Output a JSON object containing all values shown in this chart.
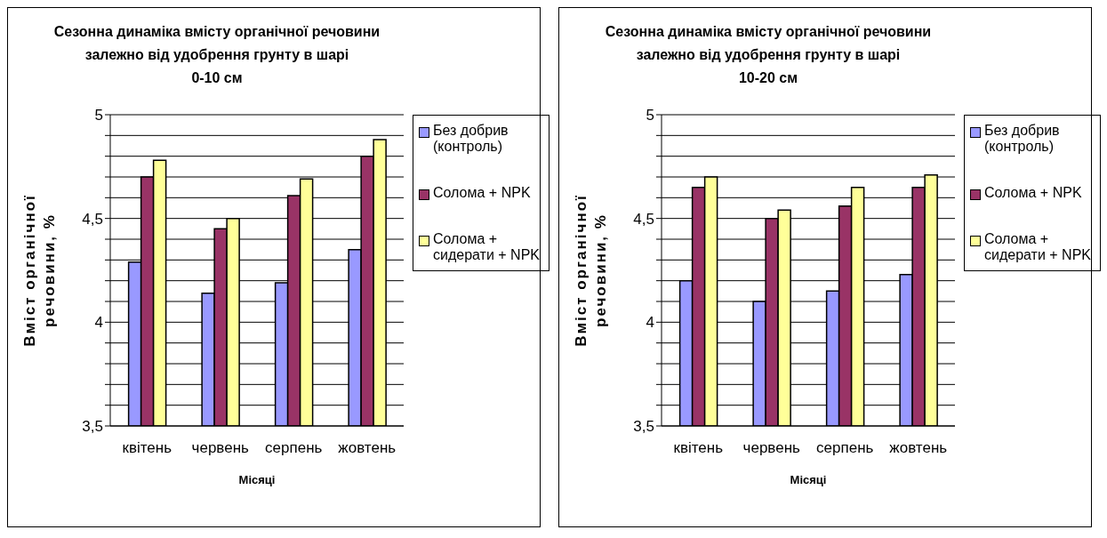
{
  "chart_data": [
    {
      "type": "bar",
      "title": "Сезонна динаміка вмісту органічної речовини\nзалежно від удобрення грунту в шарі\n0-10 см",
      "xlabel": "Місяці",
      "ylabel": "Вміст органічної\nречовини, %",
      "categories": [
        "квітень",
        "червень",
        "серпень",
        "жовтень"
      ],
      "series": [
        {
          "name": "Без добрив (контроль)",
          "color": "#9999ff",
          "values": [
            4.29,
            4.14,
            4.19,
            4.35
          ]
        },
        {
          "name": "Солома + NPK",
          "color": "#993366",
          "values": [
            4.7,
            4.45,
            4.61,
            4.8
          ]
        },
        {
          "name": "Солома + сидерати + NPK",
          "color": "#ffff99",
          "values": [
            4.78,
            4.5,
            4.69,
            4.88
          ]
        }
      ],
      "ylim": [
        3.5,
        5
      ],
      "yticks": [
        {
          "value": 3.5,
          "label": "3,5"
        },
        {
          "value": 3.6,
          "label": null
        },
        {
          "value": 3.7,
          "label": null
        },
        {
          "value": 3.8,
          "label": null
        },
        {
          "value": 3.9,
          "label": null
        },
        {
          "value": 4,
          "label": "4"
        },
        {
          "value": 4.1,
          "label": null
        },
        {
          "value": 4.2,
          "label": null
        },
        {
          "value": 4.3,
          "label": null
        },
        {
          "value": 4.4,
          "label": null
        },
        {
          "value": 4.5,
          "label": "4,5"
        },
        {
          "value": 4.6,
          "label": null
        },
        {
          "value": 4.7,
          "label": null
        },
        {
          "value": 4.8,
          "label": null
        },
        {
          "value": 4.9,
          "label": null
        },
        {
          "value": 5,
          "label": "5"
        }
      ],
      "grid": "y",
      "legend": "right"
    },
    {
      "type": "bar",
      "title": "Сезонна динаміка вмісту органічної речовини\nзалежно від удобрення грунту в шарі\n10-20 см",
      "xlabel": "Місяці",
      "ylabel": "Вміст органічної\nречовини, %",
      "categories": [
        "квітень",
        "червень",
        "серпень",
        "жовтень"
      ],
      "series": [
        {
          "name": "Без добрив (контроль)",
          "color": "#9999ff",
          "values": [
            4.2,
            4.1,
            4.15,
            4.23
          ]
        },
        {
          "name": "Солома + NPK",
          "color": "#993366",
          "values": [
            4.65,
            4.5,
            4.56,
            4.65
          ]
        },
        {
          "name": "Солома + сидерати + NPK",
          "color": "#ffff99",
          "values": [
            4.7,
            4.54,
            4.65,
            4.71
          ]
        }
      ],
      "ylim": [
        3.5,
        5
      ],
      "yticks": [
        {
          "value": 3.5,
          "label": "3,5"
        },
        {
          "value": 3.6,
          "label": null
        },
        {
          "value": 3.7,
          "label": null
        },
        {
          "value": 3.8,
          "label": null
        },
        {
          "value": 3.9,
          "label": null
        },
        {
          "value": 4,
          "label": "4"
        },
        {
          "value": 4.1,
          "label": null
        },
        {
          "value": 4.2,
          "label": null
        },
        {
          "value": 4.3,
          "label": null
        },
        {
          "value": 4.4,
          "label": null
        },
        {
          "value": 4.5,
          "label": "4,5"
        },
        {
          "value": 4.6,
          "label": null
        },
        {
          "value": 4.7,
          "label": null
        },
        {
          "value": 4.8,
          "label": null
        },
        {
          "value": 4.9,
          "label": null
        },
        {
          "value": 5,
          "label": "5"
        }
      ],
      "grid": "y",
      "legend": "right"
    }
  ]
}
